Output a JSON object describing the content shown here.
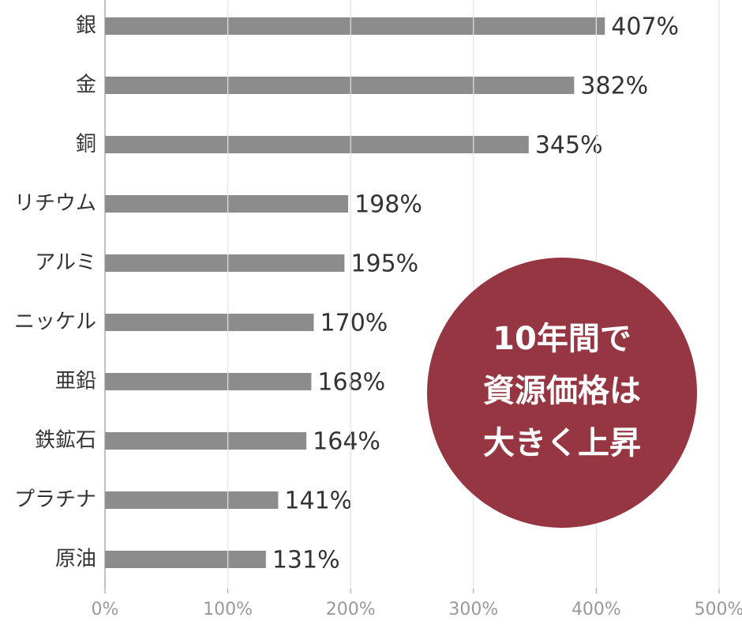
{
  "chart_data": {
    "type": "bar",
    "orientation": "horizontal",
    "categories": [
      "銀",
      "金",
      "銅",
      "リチウム",
      "アルミ",
      "ニッケル",
      "亜鉛",
      "鉄鉱石",
      "プラチナ",
      "原油"
    ],
    "values": [
      407,
      382,
      345,
      198,
      195,
      170,
      168,
      164,
      141,
      131
    ],
    "value_labels": [
      "407%",
      "382%",
      "345%",
      "198%",
      "195%",
      "170%",
      "168%",
      "164%",
      "141%",
      "131%"
    ],
    "color": "#8c8c8c",
    "xlim": [
      0,
      500
    ],
    "xticks": [
      {
        "value": 0,
        "label": "0%"
      },
      {
        "value": 100,
        "label": "100%"
      },
      {
        "value": 200,
        "label": "200%"
      },
      {
        "value": 300,
        "label": "300%"
      },
      {
        "value": 400,
        "label": "400%"
      },
      {
        "value": 500,
        "label": "500%"
      }
    ],
    "grid": true,
    "annotation": [
      "10年間で",
      "資源価格は",
      "大きく上昇"
    ],
    "annotation_color": "#953642"
  }
}
